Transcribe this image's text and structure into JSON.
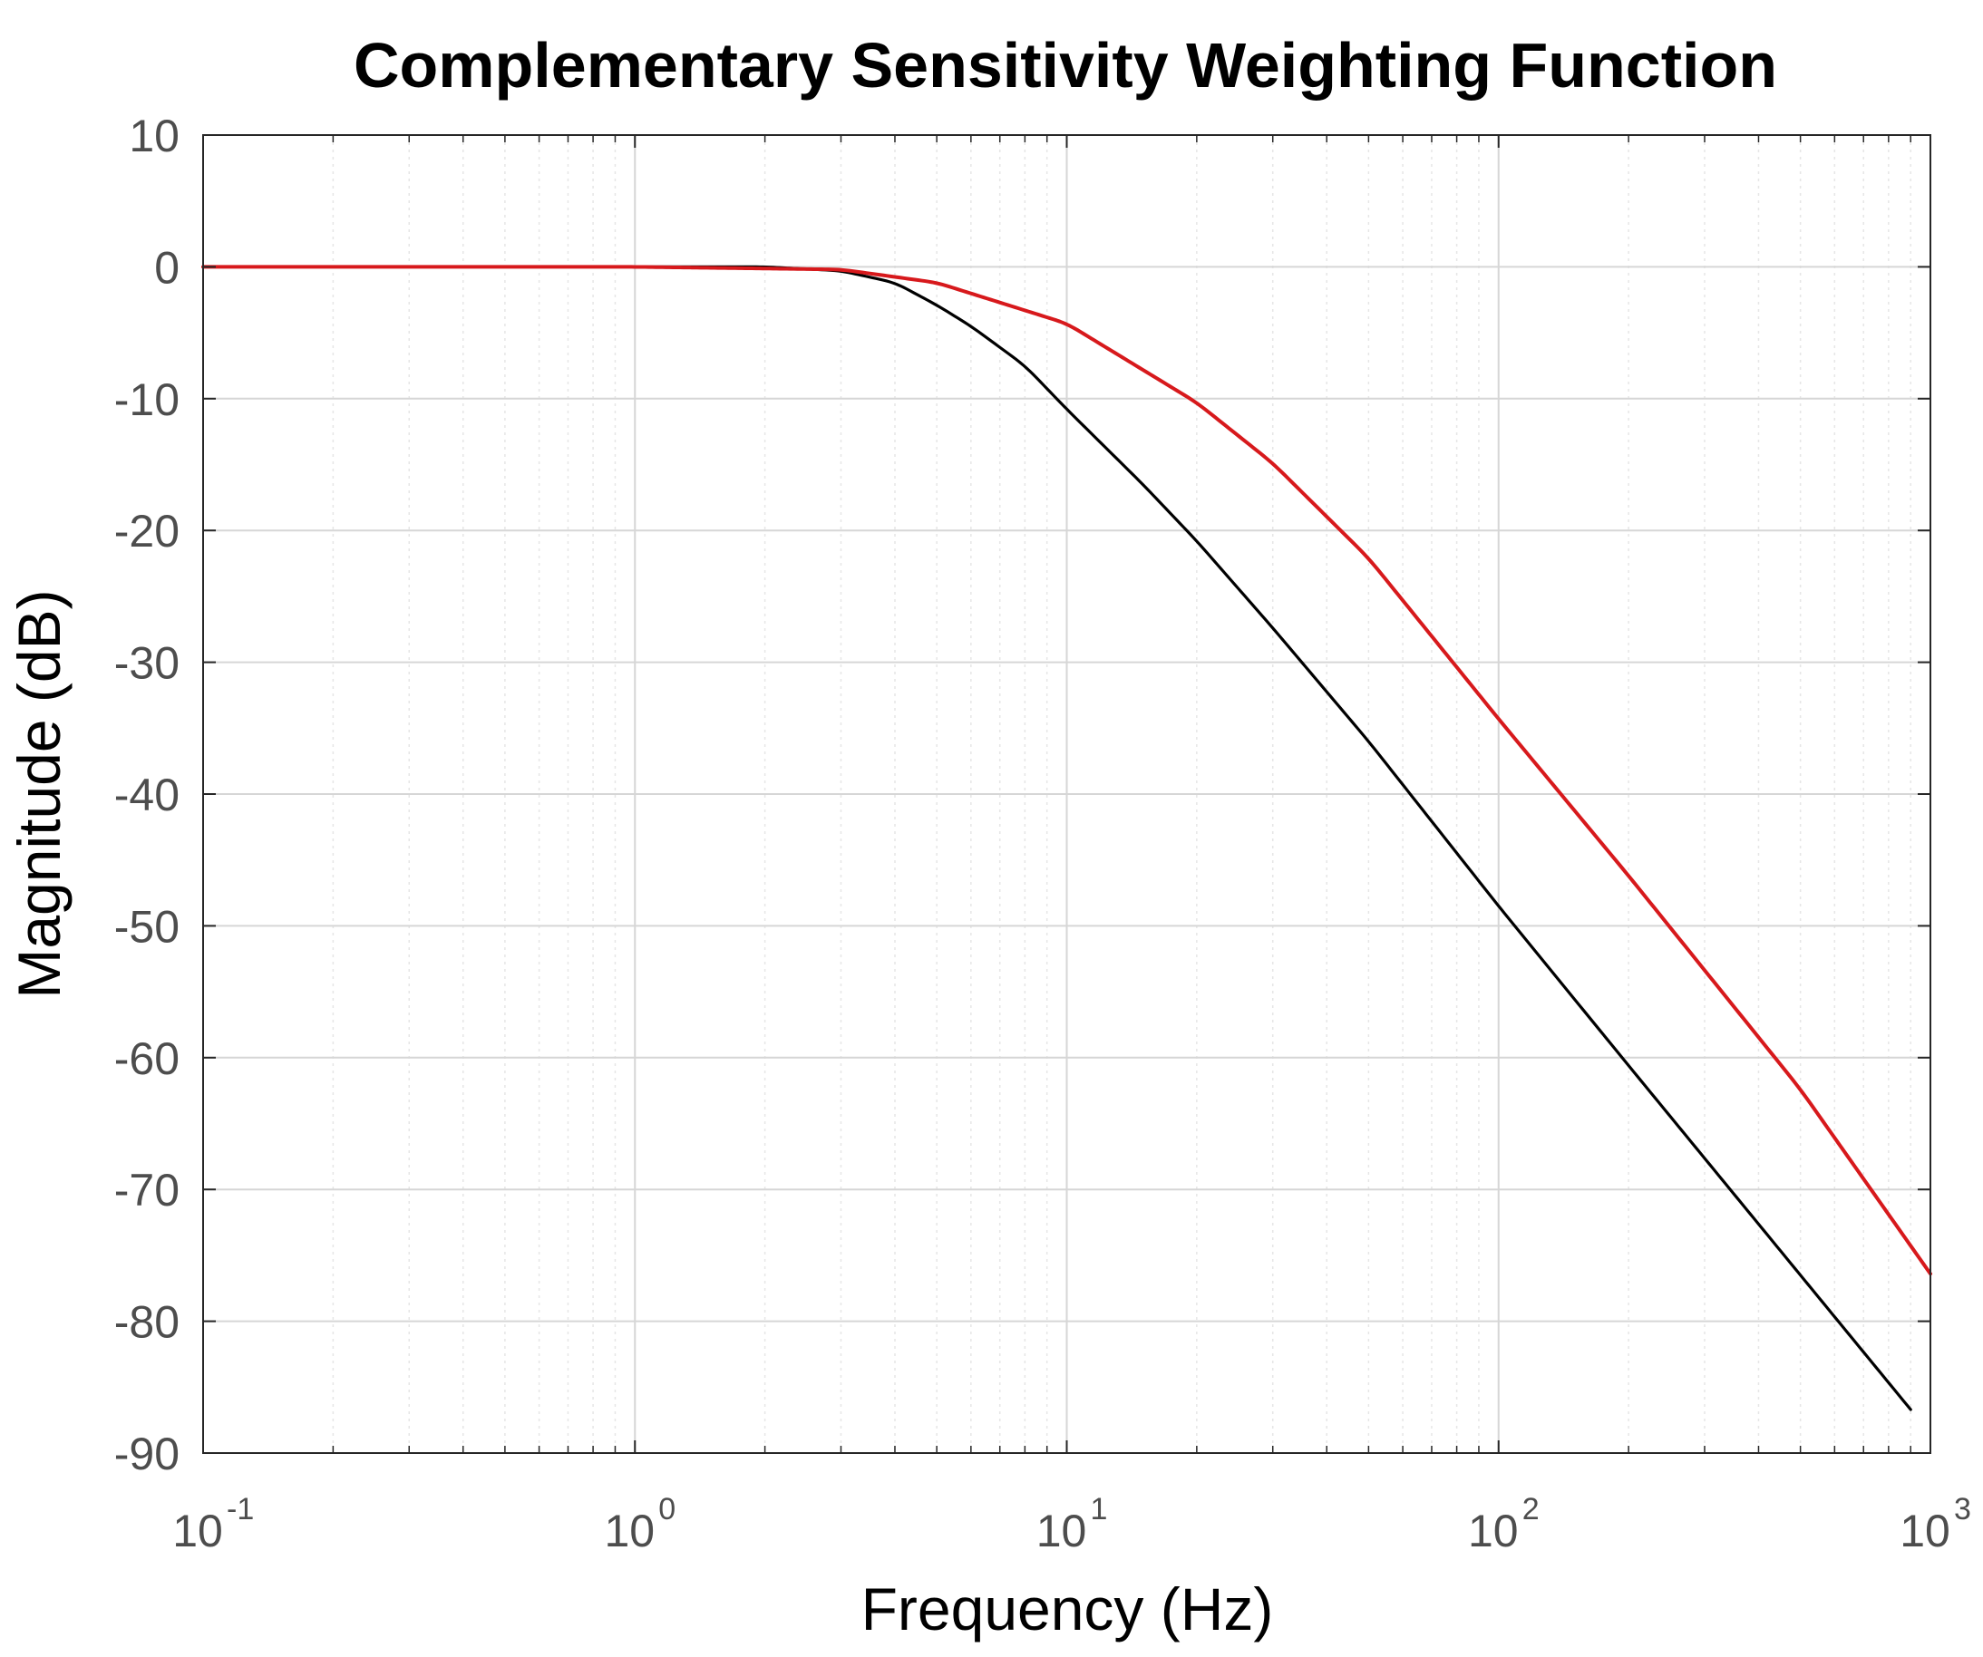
{
  "chart_data": {
    "type": "line",
    "title": "Complementary Sensitivity Weighting Function",
    "xlabel": "Frequency  (Hz)",
    "ylabel": "Magnitude (dB)",
    "xscale": "log",
    "xlim": [
      0.1,
      1000
    ],
    "ylim": [
      -90,
      10
    ],
    "grid": true,
    "minor_grid": true,
    "y_ticks": [
      10,
      0,
      -10,
      -20,
      -30,
      -40,
      -50,
      -60,
      -70,
      -80,
      -90
    ],
    "y_tick_labels": [
      "10",
      "0",
      "-10",
      "-20",
      "-30",
      "-40",
      "-50",
      "-60",
      "-70",
      "-80",
      "-90"
    ],
    "x_ticks": [
      {
        "value": 0.1,
        "base": "10",
        "exp": "-1"
      },
      {
        "value": 1,
        "base": "10",
        "exp": "0"
      },
      {
        "value": 10,
        "base": "10",
        "exp": "1"
      },
      {
        "value": 100,
        "base": "10",
        "exp": "2"
      },
      {
        "value": 1000,
        "base": "10",
        "exp": "3"
      }
    ],
    "series": [
      {
        "name": "black curve",
        "color": "#000000",
        "x": [
          0.1,
          1,
          2,
          3,
          4,
          5,
          6,
          8,
          10,
          15,
          20,
          30,
          50,
          100,
          200,
          500,
          900
        ],
        "y": [
          0,
          0,
          0,
          -0.3,
          -1.2,
          -2.9,
          -4.5,
          -7.5,
          -10.8,
          -16.5,
          -20.8,
          -27.4,
          -36,
          -48.5,
          -60.6,
          -76.5,
          -86.7
        ]
      },
      {
        "name": "red curve",
        "color": "#d7191c",
        "x": [
          0.1,
          1,
          3,
          5,
          10,
          20,
          30,
          50,
          100,
          200,
          500,
          1000
        ],
        "y": [
          0,
          0,
          -0.2,
          -1.2,
          -4.3,
          -10.3,
          -14.9,
          -22.1,
          -34.3,
          -46.2,
          -62.4,
          -76.4
        ]
      }
    ]
  }
}
